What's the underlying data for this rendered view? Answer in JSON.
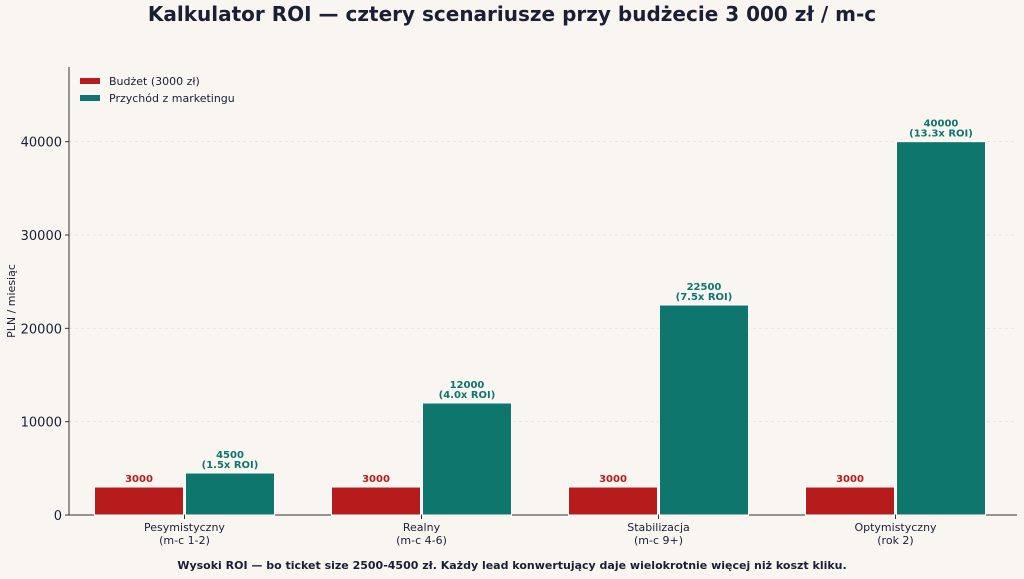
{
  "chart_data": {
    "type": "bar",
    "title": "Kalkulator ROI — cztery scenariusze przy budżecie 3 000 zł / m-c",
    "ylabel": "PLN / miesiąc",
    "xlabel": "",
    "ylim": [
      0,
      48000
    ],
    "yticks": [
      0,
      10000,
      20000,
      30000,
      40000
    ],
    "grid": true,
    "legend_position": "top-left",
    "categories": [
      [
        "Pesymistyczny",
        "(m-c 1-2)"
      ],
      [
        "Realny",
        "(m-c 4-6)"
      ],
      [
        "Stabilizacja",
        "(m-c 9+)"
      ],
      [
        "Optymistyczny",
        "(rok 2)"
      ]
    ],
    "series": [
      {
        "name": "Budżet (3000 zł)",
        "color": "#b71c1c",
        "values": [
          3000,
          3000,
          3000,
          3000
        ],
        "labels": [
          [
            "3000"
          ],
          [
            "3000"
          ],
          [
            "3000"
          ],
          [
            "3000"
          ]
        ]
      },
      {
        "name": "Przychód z marketingu",
        "color": "#0f766e",
        "values": [
          4500,
          12000,
          22500,
          40000
        ],
        "labels": [
          [
            "4500",
            "(1.5x ROI)"
          ],
          [
            "12000",
            "(4.0x ROI)"
          ],
          [
            "22500",
            "(7.5x ROI)"
          ],
          [
            "40000",
            "(13.3x ROI)"
          ]
        ]
      }
    ],
    "footnote": "Wysoki ROI — bo ticket size 2500-4500 zł. Każdy lead konwertujący daje wielokrotnie więcej niż koszt kliku."
  }
}
